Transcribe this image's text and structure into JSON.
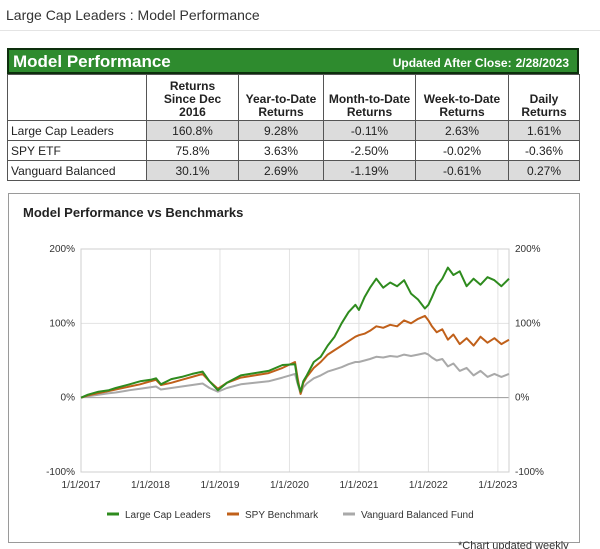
{
  "page": {
    "title": "Large Cap Leaders : Model Performance"
  },
  "performance_table": {
    "heading": "Model Performance",
    "updated_label": "Updated After Close:",
    "updated_date": "2/28/2023",
    "columns": [
      {
        "line1": "Returns",
        "line2": "Since Dec",
        "line3": "2016"
      },
      {
        "line1": "",
        "line2": "Year-to-Date",
        "line3": "Returns"
      },
      {
        "line1": "",
        "line2": "Month-to-Date",
        "line3": "Returns"
      },
      {
        "line1": "",
        "line2": "Week-to-Date",
        "line3": "Returns"
      },
      {
        "line1": "",
        "line2": "Daily",
        "line3": "Returns"
      }
    ],
    "rows": [
      {
        "label": "Large Cap Leaders",
        "values": [
          "160.8%",
          "9.28%",
          "-0.11%",
          "2.63%",
          "1.61%"
        ]
      },
      {
        "label": "SPY ETF",
        "values": [
          "75.8%",
          "3.63%",
          "-2.50%",
          "-0.02%",
          "-0.36%"
        ]
      },
      {
        "label": "Vanguard Balanced",
        "values": [
          "30.1%",
          "2.69%",
          "-1.19%",
          "-0.61%",
          "0.27%"
        ]
      }
    ]
  },
  "chart_data": {
    "type": "line",
    "title": "Model Performance vs Benchmarks",
    "xlabel": "",
    "ylabel": "",
    "ylim": [
      -100,
      200
    ],
    "y_ticks": [
      "200%",
      "100%",
      "0%",
      "-100%"
    ],
    "y_tick_values": [
      200,
      100,
      0,
      -100
    ],
    "x_ticks": [
      "1/1/2017",
      "1/1/2018",
      "1/1/2019",
      "1/1/2020",
      "1/1/2021",
      "1/1/2022",
      "1/1/2023"
    ],
    "x_tick_values": [
      2017,
      2018,
      2019,
      2020,
      2021,
      2022,
      2023
    ],
    "xlim": [
      2017,
      2023.16
    ],
    "grid": true,
    "legend_position": "bottom",
    "series": [
      {
        "name": "Large Cap Leaders",
        "color": "#2e8b1e",
        "x": [
          2017.0,
          2017.1,
          2017.25,
          2017.4,
          2017.5,
          2017.7,
          2017.85,
          2018.0,
          2018.08,
          2018.15,
          2018.3,
          2018.45,
          2018.6,
          2018.75,
          2018.85,
          2018.97,
          2019.1,
          2019.3,
          2019.5,
          2019.7,
          2019.9,
          2020.08,
          2020.12,
          2020.16,
          2020.2,
          2020.25,
          2020.35,
          2020.45,
          2020.55,
          2020.65,
          2020.75,
          2020.85,
          2020.95,
          2021.0,
          2021.08,
          2021.16,
          2021.25,
          2021.35,
          2021.45,
          2021.55,
          2021.65,
          2021.75,
          2021.85,
          2021.95,
          2022.0,
          2022.05,
          2022.12,
          2022.2,
          2022.28,
          2022.36,
          2022.45,
          2022.55,
          2022.65,
          2022.75,
          2022.85,
          2022.95,
          2023.05,
          2023.16
        ],
        "values": [
          0,
          4,
          8,
          10,
          13,
          18,
          22,
          24,
          26,
          18,
          25,
          28,
          32,
          35,
          22,
          10,
          20,
          30,
          33,
          36,
          44,
          45,
          20,
          8,
          22,
          30,
          48,
          55,
          70,
          82,
          100,
          115,
          125,
          118,
          135,
          148,
          160,
          148,
          155,
          150,
          158,
          140,
          132,
          120,
          125,
          135,
          150,
          160,
          175,
          165,
          170,
          150,
          160,
          152,
          162,
          158,
          150,
          160
        ]
      },
      {
        "name": "SPY Benchmark",
        "color": "#c0601a",
        "x": [
          2017.0,
          2017.1,
          2017.25,
          2017.4,
          2017.5,
          2017.7,
          2017.85,
          2018.0,
          2018.08,
          2018.15,
          2018.3,
          2018.45,
          2018.6,
          2018.75,
          2018.85,
          2018.97,
          2019.1,
          2019.3,
          2019.5,
          2019.7,
          2019.9,
          2020.08,
          2020.12,
          2020.16,
          2020.2,
          2020.25,
          2020.35,
          2020.45,
          2020.55,
          2020.65,
          2020.75,
          2020.85,
          2020.95,
          2021.0,
          2021.08,
          2021.16,
          2021.25,
          2021.35,
          2021.45,
          2021.55,
          2021.65,
          2021.75,
          2021.85,
          2021.95,
          2022.0,
          2022.05,
          2022.12,
          2022.2,
          2022.28,
          2022.36,
          2022.45,
          2022.55,
          2022.65,
          2022.75,
          2022.85,
          2022.95,
          2023.05,
          2023.16
        ],
        "values": [
          0,
          3,
          6,
          9,
          11,
          15,
          18,
          22,
          24,
          17,
          20,
          24,
          28,
          32,
          22,
          12,
          20,
          27,
          30,
          33,
          40,
          48,
          25,
          5,
          20,
          28,
          40,
          48,
          58,
          64,
          70,
          76,
          82,
          84,
          86,
          90,
          96,
          94,
          98,
          96,
          104,
          100,
          106,
          110,
          104,
          96,
          88,
          92,
          78,
          85,
          72,
          80,
          70,
          82,
          74,
          80,
          72,
          78
        ]
      },
      {
        "name": "Vanguard Balanced Fund",
        "color": "#a9a9a9",
        "x": [
          2017.0,
          2017.1,
          2017.25,
          2017.4,
          2017.5,
          2017.7,
          2017.85,
          2018.0,
          2018.08,
          2018.15,
          2018.3,
          2018.45,
          2018.6,
          2018.75,
          2018.85,
          2018.97,
          2019.1,
          2019.3,
          2019.5,
          2019.7,
          2019.9,
          2020.08,
          2020.12,
          2020.16,
          2020.2,
          2020.25,
          2020.35,
          2020.45,
          2020.55,
          2020.65,
          2020.75,
          2020.85,
          2020.95,
          2021.0,
          2021.08,
          2021.16,
          2021.25,
          2021.35,
          2021.45,
          2021.55,
          2021.65,
          2021.75,
          2021.85,
          2021.95,
          2022.0,
          2022.05,
          2022.12,
          2022.2,
          2022.28,
          2022.36,
          2022.45,
          2022.55,
          2022.65,
          2022.75,
          2022.85,
          2022.95,
          2023.05,
          2023.16
        ],
        "values": [
          0,
          2,
          4,
          6,
          7,
          10,
          12,
          14,
          15,
          11,
          13,
          15,
          17,
          19,
          13,
          8,
          13,
          18,
          20,
          22,
          27,
          32,
          18,
          5,
          14,
          19,
          26,
          30,
          35,
          38,
          41,
          45,
          48,
          48,
          50,
          52,
          55,
          54,
          56,
          55,
          58,
          56,
          58,
          60,
          58,
          54,
          50,
          52,
          42,
          46,
          36,
          40,
          30,
          36,
          28,
          32,
          28,
          32
        ]
      }
    ]
  },
  "footnote": "*Chart updated weekly"
}
